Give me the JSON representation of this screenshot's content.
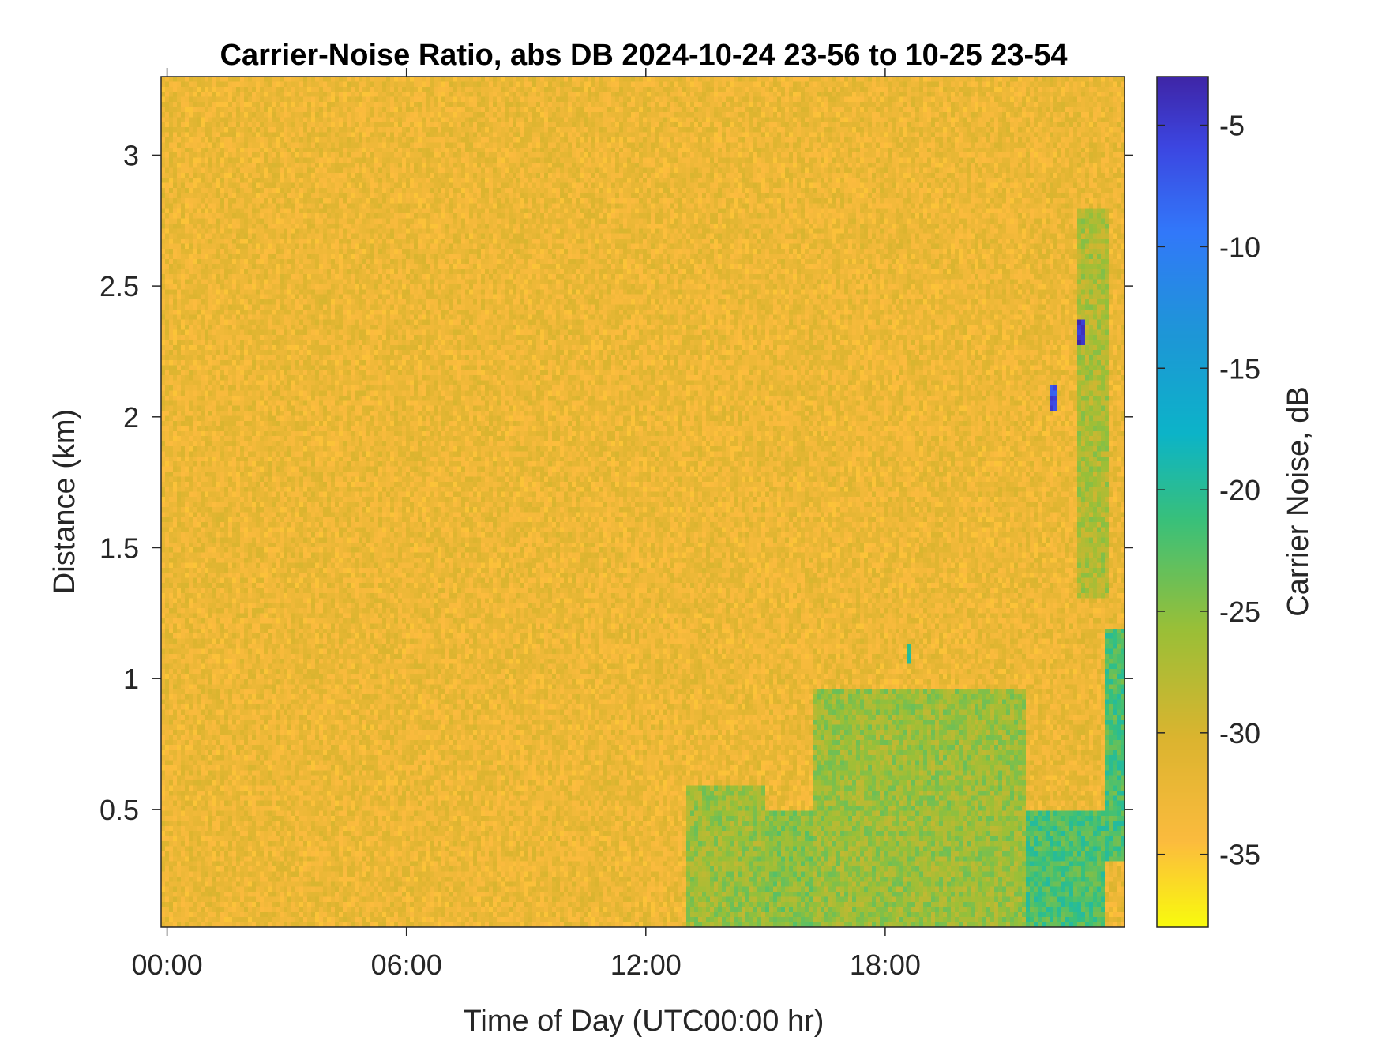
{
  "chart_data": {
    "type": "heatmap",
    "title": "Carrier-Noise Ratio, abs DB 2024-10-24 23-56 to 10-25 23-54",
    "xlabel": "Time of Day (UTC00:00 hr)",
    "ylabel": "Distance (km)",
    "colorbar_label": "Carrier Noise, dB",
    "x_ticks": [
      "00:00",
      "06:00",
      "12:00",
      "18:00"
    ],
    "x_tick_hours": [
      0,
      6,
      12,
      18
    ],
    "xlim_hours": [
      -0.15,
      24.0
    ],
    "y_ticks": [
      "0.5",
      "1",
      "1.5",
      "2",
      "2.5",
      "3"
    ],
    "y_tick_values": [
      0.5,
      1,
      1.5,
      2,
      2.5,
      3
    ],
    "ylim_km": [
      0.05,
      3.3
    ],
    "colorbar_ticks": [
      "-5",
      "-10",
      "-15",
      "-20",
      "-25",
      "-30",
      "-35"
    ],
    "colorbar_tick_values": [
      -5,
      -10,
      -15,
      -20,
      -25,
      -30,
      -35
    ],
    "clim_db": [
      -38,
      -3
    ],
    "colormap": "parula (reversed)",
    "background_db": -32.5,
    "grid": false,
    "features": [
      {
        "hours": [
          13.0,
          15.0
        ],
        "km": [
          0.05,
          0.6
        ],
        "db": -26
      },
      {
        "hours": [
          15.0,
          16.2
        ],
        "km": [
          0.05,
          0.5
        ],
        "db": -25
      },
      {
        "hours": [
          16.2,
          21.5
        ],
        "km": [
          0.05,
          0.95
        ],
        "db": -26
      },
      {
        "hours": [
          21.5,
          23.5
        ],
        "km": [
          0.05,
          0.5
        ],
        "db": -22
      },
      {
        "hours": [
          22.8,
          23.6
        ],
        "km": [
          1.3,
          2.8
        ],
        "db": -27
      },
      {
        "hours": [
          23.5,
          24.0
        ],
        "km": [
          0.3,
          1.2
        ],
        "db": -22
      },
      {
        "hours": [
          22.15,
          22.3
        ],
        "km": [
          2.02,
          2.12
        ],
        "db": -6
      },
      {
        "hours": [
          22.8,
          23.0
        ],
        "km": [
          2.28,
          2.38
        ],
        "db": -4
      },
      {
        "hours": [
          18.55,
          18.65
        ],
        "km": [
          1.05,
          1.14
        ],
        "db": -19
      }
    ]
  },
  "colors": {
    "axis": "#262626",
    "title": "#000000"
  }
}
